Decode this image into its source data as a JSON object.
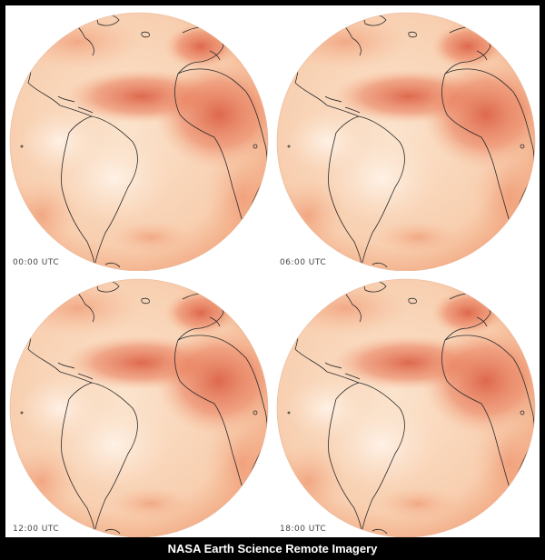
{
  "caption": "NASA Earth Science Remote Imagery",
  "panels": [
    {
      "time_label": "00:00 UTC"
    },
    {
      "time_label": "06:00 UTC"
    },
    {
      "time_label": "12:00 UTC"
    },
    {
      "time_label": "18:00 UTC"
    }
  ],
  "colors": {
    "background": "#ffffff",
    "frame": "#000000",
    "globe_light": "#fbe6d2",
    "globe_mid": "#f5b48e",
    "globe_dark": "#d9553a",
    "coastline": "#2a2a2a"
  }
}
